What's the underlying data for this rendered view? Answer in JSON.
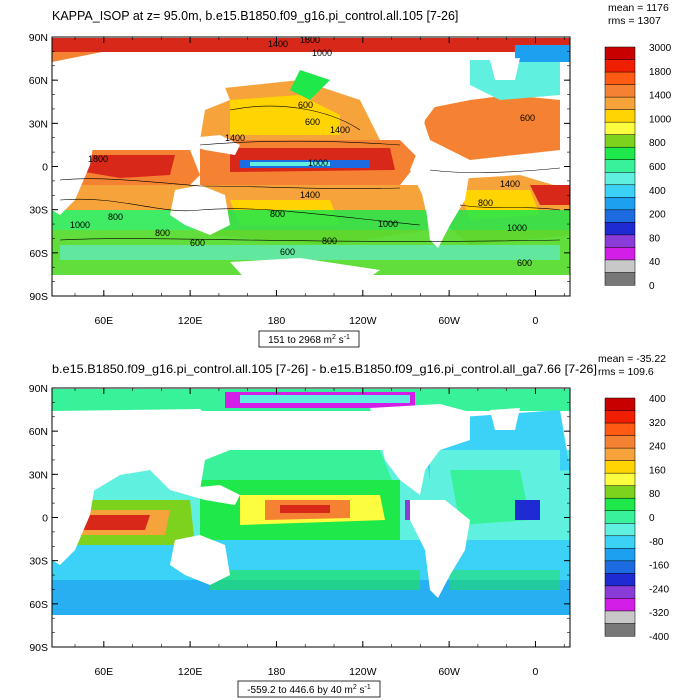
{
  "chart_data": [
    {
      "type": "heatmap",
      "title": "KAPPA_ISOP at z=  95.0m, b.e15.B1850.f09_g16.pi_control.all.105 [7-26]",
      "stats": [
        "mean = 1176",
        "rms = 1307"
      ],
      "range_label": {
        "text": "151 to 2968 m",
        "sup1": "2",
        "mid": " s",
        "sup2": "-1"
      },
      "y_ticks": [
        "90N",
        "60N",
        "30N",
        "0",
        "30S",
        "60S",
        "90S"
      ],
      "x_ticks": [
        "60E",
        "120E",
        "180",
        "120W",
        "60W",
        "0"
      ],
      "contour_labels": [
        "1400",
        "1800",
        "1000",
        "600",
        "600",
        "1400",
        "1400",
        "600",
        "1400",
        "1000",
        "1800",
        "1400",
        "800",
        "1000",
        "800",
        "800",
        "1000",
        "800",
        "800",
        "1000",
        "600",
        "600",
        "600"
      ],
      "colorbar": {
        "labels": [
          "3000",
          "1800",
          "1400",
          "1000",
          "800",
          "600",
          "400",
          "200",
          "80",
          "40",
          "0"
        ],
        "colors": [
          "#c80000",
          "#f01e00",
          "#ff5a14",
          "#f58232",
          "#f6a33c",
          "#ffd400",
          "#fdfd40",
          "#7cd21c",
          "#1ee84a",
          "#38f29a",
          "#60f0e0",
          "#3cd2f8",
          "#1ea0f0",
          "#1c6be0",
          "#1e2ad2",
          "#8a3cd8",
          "#d21ee6",
          "#c8c8c8",
          "#787878"
        ]
      }
    },
    {
      "type": "heatmap",
      "title": "b.e15.B1850.f09_g16.pi_control.all.105 [7-26] - b.e15.B1850.f09_g16.pi_control.all_ga7.66 [7-26]",
      "stats": [
        "mean = -35.22",
        "rms = 109.6"
      ],
      "range_label": {
        "text": "-559.2 to 446.6 by 40 m",
        "sup1": "2",
        "mid": " s",
        "sup2": "-1"
      },
      "y_ticks": [
        "90N",
        "60N",
        "30N",
        "0",
        "30S",
        "60S",
        "90S"
      ],
      "x_ticks": [
        "60E",
        "120E",
        "180",
        "120W",
        "60W",
        "0"
      ],
      "colorbar": {
        "labels": [
          "400",
          "320",
          "240",
          "160",
          "80",
          "0",
          "-80",
          "-160",
          "-240",
          "-320",
          "-400"
        ],
        "colors": [
          "#c80000",
          "#f01e00",
          "#ff5a14",
          "#f58232",
          "#f6a33c",
          "#ffd400",
          "#fdfd40",
          "#7cd21c",
          "#1ee84a",
          "#38f29a",
          "#60f0e0",
          "#3cd2f8",
          "#1ea0f0",
          "#1c6be0",
          "#1e2ad2",
          "#8a3cd8",
          "#d21ee6",
          "#c8c8c8",
          "#787878"
        ]
      }
    }
  ]
}
